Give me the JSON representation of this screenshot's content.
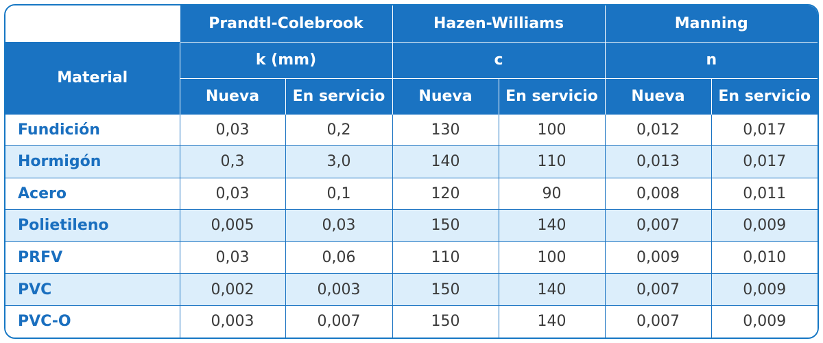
{
  "header": {
    "material_label": "Material",
    "groups": [
      {
        "method": "Prandtl-Colebrook",
        "param": "k (mm)"
      },
      {
        "method": "Hazen-Williams",
        "param": "c"
      },
      {
        "method": "Manning",
        "param": "n"
      }
    ],
    "subcols": [
      "Nueva",
      "En servicio",
      "Nueva",
      "En servicio",
      "Nueva",
      "En servicio"
    ]
  },
  "rows": [
    {
      "material": "Fundición",
      "values": [
        "0,03",
        "0,2",
        "130",
        "100",
        "0,012",
        "0,017"
      ]
    },
    {
      "material": "Hormigón",
      "values": [
        "0,3",
        "3,0",
        "140",
        "110",
        "0,013",
        "0,017"
      ]
    },
    {
      "material": "Acero",
      "values": [
        "0,03",
        "0,1",
        "120",
        "90",
        "0,008",
        "0,011"
      ]
    },
    {
      "material": "Polietileno",
      "values": [
        "0,005",
        "0,03",
        "150",
        "140",
        "0,007",
        "0,009"
      ]
    },
    {
      "material": "PRFV",
      "values": [
        "0,03",
        "0,06",
        "110",
        "100",
        "0,009",
        "0,010"
      ]
    },
    {
      "material": "PVC",
      "values": [
        "0,002",
        "0,003",
        "150",
        "140",
        "0,007",
        "0,009"
      ]
    },
    {
      "material": "PVC-O",
      "values": [
        "0,003",
        "0,007",
        "150",
        "140",
        "0,007",
        "0,009"
      ]
    }
  ],
  "colors": {
    "header_bg": "#1a73c2",
    "header_text": "#ffffff",
    "material_text": "#1a6fbf",
    "alt_row_bg": "#dceefb",
    "border": "#1677c4"
  }
}
